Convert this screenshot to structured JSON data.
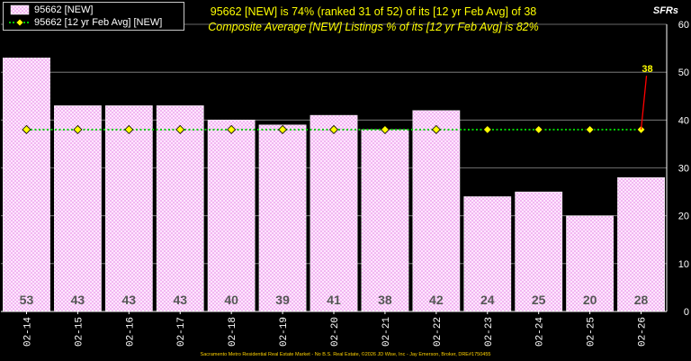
{
  "header": {
    "line1": "95662 [NEW] is 74% (ranked 31 of 52)  of its [12 yr Feb Avg] of 38",
    "line2": "Composite Average [NEW] Listings % of its [12 yr Feb Avg] is 82%",
    "corner_label": "SFRs"
  },
  "legend": {
    "items": [
      {
        "label": "95662 [NEW]",
        "swatch": "pink-pattern-box"
      },
      {
        "label": "95662 [12 yr Feb Avg] [NEW]",
        "swatch": "green-dotted-diamond"
      }
    ]
  },
  "footer": "Sacramento Metro Residential Real Estate Market - No B.S. Real Estate, ©2026 JD Wise, Inc - Jay Emerson, Broker, DRE#1750455",
  "colors": {
    "background": "#000000",
    "bar_fill": "#ffe6ff",
    "bar_pattern": "#e080e0",
    "avg_line": "#00cc00",
    "avg_marker": "#ffff00",
    "annotation": "#ff0000",
    "annotation_text": "#ffff00",
    "value_label": "#555555",
    "grid": "#8c8c8c",
    "text": "#ffffff"
  },
  "chart_data": {
    "type": "bar",
    "categories": [
      "02-14",
      "02-15",
      "02-16",
      "02-17",
      "02-18",
      "02-19",
      "02-20",
      "02-21",
      "02-22",
      "02-23",
      "02-24",
      "02-25",
      "02-26"
    ],
    "series": [
      {
        "name": "95662 [NEW]",
        "type": "bar",
        "values": [
          53,
          43,
          43,
          43,
          40,
          39,
          41,
          38,
          42,
          24,
          25,
          20,
          28
        ]
      },
      {
        "name": "95662 [12 yr Feb Avg] [NEW]",
        "type": "line",
        "values": [
          38,
          38,
          38,
          38,
          38,
          38,
          38,
          38,
          38,
          38,
          38,
          38,
          38
        ]
      }
    ],
    "y_axis": {
      "position": "right",
      "ylim": [
        0,
        60
      ],
      "ticks": [
        0,
        10,
        20,
        30,
        40,
        50,
        60
      ]
    },
    "annotation": {
      "category": "02-26",
      "text": "38"
    },
    "grid": true,
    "legend": "top-left"
  }
}
